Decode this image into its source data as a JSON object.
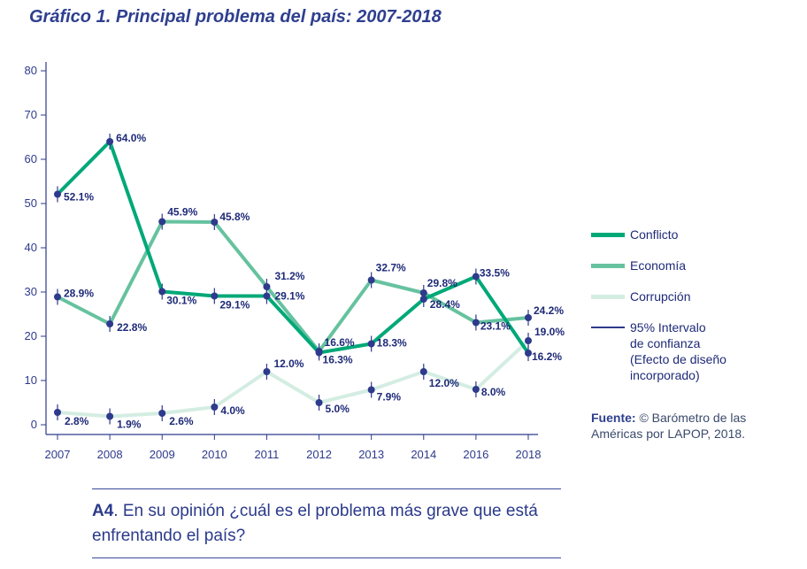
{
  "title": "Gráfico 1. Principal problema del país: 2007-2018",
  "colors": {
    "conflicto": "#00a878",
    "economia": "#66c29f",
    "corrupcion": "#d4ede3",
    "points": "#2e3a8c",
    "labels": "#1e2a78",
    "axis": "#2e3a8c"
  },
  "chart_data": {
    "type": "line",
    "x": [
      "2007",
      "2008",
      "2009",
      "2010",
      "2011",
      "2012",
      "2013",
      "2014",
      "2016",
      "2018"
    ],
    "ylim": [
      0,
      80
    ],
    "yticks": [
      0,
      10,
      20,
      30,
      40,
      50,
      60,
      70,
      80
    ],
    "xlabel": "",
    "ylabel": "",
    "grid": false,
    "legend_position": "right",
    "series": [
      {
        "name": "Conflicto",
        "key": "conflicto",
        "values": [
          52.1,
          64.0,
          30.1,
          29.1,
          29.1,
          16.3,
          18.3,
          28.4,
          33.5,
          16.2
        ],
        "labels": [
          "52.1%",
          "64.0%",
          "30.1%",
          "29.1%",
          "29.1%",
          "16.3%",
          "18.3%",
          "28.4%",
          "33.5%",
          "16.2%"
        ]
      },
      {
        "name": "Economía",
        "key": "economia",
        "values": [
          28.9,
          22.8,
          45.9,
          45.8,
          31.2,
          16.6,
          32.7,
          29.8,
          23.1,
          24.2
        ],
        "labels": [
          "28.9%",
          "22.8%",
          "45.9%",
          "45.8%",
          "31.2%",
          "16.6%",
          "32.7%",
          "29.8%",
          "23.1%",
          "24.2%"
        ]
      },
      {
        "name": "Corrupción",
        "key": "corrupcion",
        "values": [
          2.8,
          1.9,
          2.6,
          4.0,
          12.0,
          5.0,
          7.9,
          12.0,
          8.0,
          19.0
        ],
        "labels": [
          "2.8%",
          "1.9%",
          "2.6%",
          "4.0%",
          "12.0%",
          "5.0%",
          "7.9%",
          "12.0%",
          "8.0%",
          "19.0%"
        ]
      }
    ],
    "confidence_interval_label": "95% Intervalo\nde confianza\n(Efecto de diseño\nincorporado)"
  },
  "source": {
    "label": "Fuente:",
    "text": "© Barómetro de las Américas por LAPOP, 2018."
  },
  "question": {
    "code": "A4",
    "text": ". En su opinión ¿cuál es el problema más grave que está enfrentando el país?"
  }
}
